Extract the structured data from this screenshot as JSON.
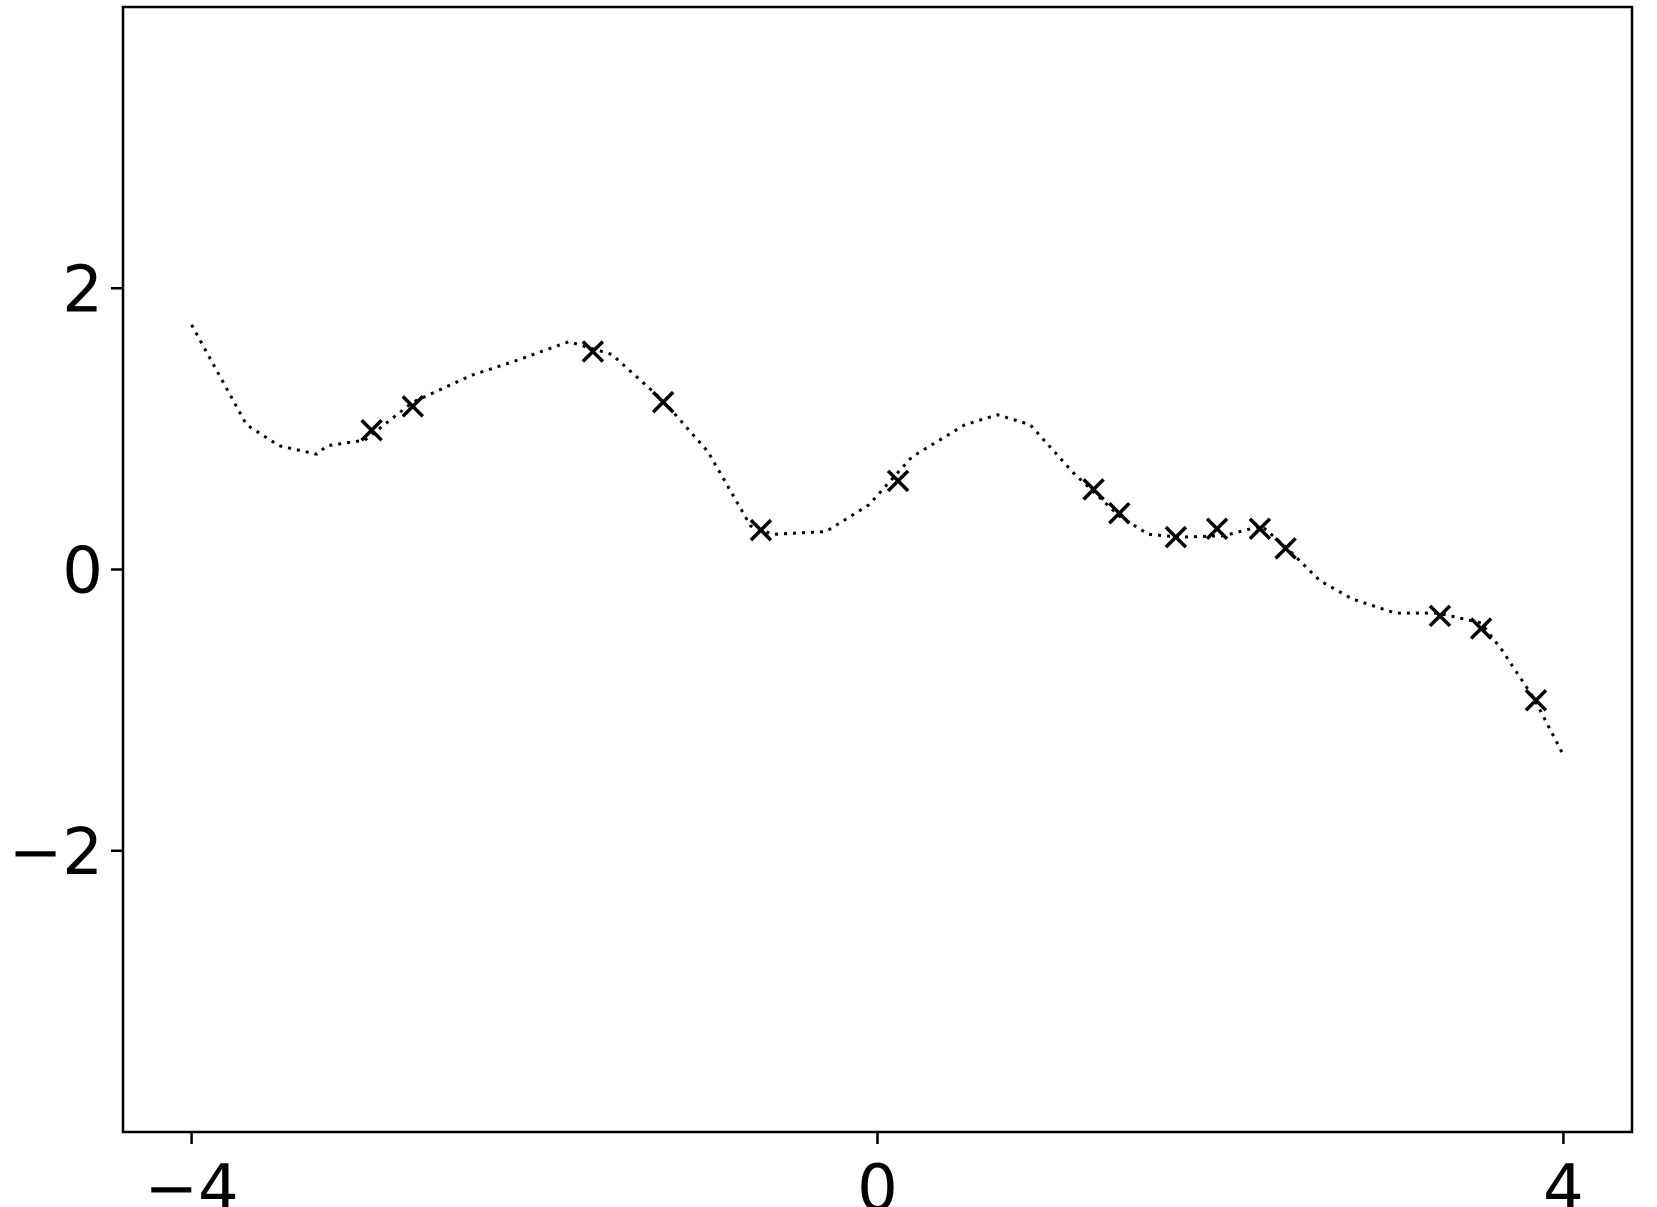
{
  "chart_data": {
    "type": "line",
    "xlim": [
      -4.4,
      4.4
    ],
    "ylim": [
      -4,
      4
    ],
    "xticks": [
      {
        "value": -4,
        "label": "−4"
      },
      0,
      4
    ],
    "yticks": [
      {
        "value": -2,
        "label": "−2"
      },
      0,
      2
    ],
    "series": [
      {
        "style": "dotted",
        "color": "#000000",
        "x": [
          -4,
          -3.68,
          -3.49,
          -3.27,
          -3.21,
          -2.99,
          -2.71,
          -2.37,
          -2.12,
          -1.8,
          -1.55,
          -1.25,
          -0.99,
          -0.74,
          -0.61,
          -0.3,
          -0.05,
          0.2,
          0.51,
          0.7,
          0.89,
          1.14,
          1.41,
          1.58,
          1.77,
          2.02,
          2.24,
          2.39,
          2.58,
          2.77,
          3.02,
          3.27,
          3.52,
          3.64,
          3.83,
          4
        ],
        "values": [
          1.74,
          1.03,
          0.88,
          0.82,
          0.88,
          0.92,
          1.19,
          1.38,
          1.48,
          1.62,
          1.53,
          1.2,
          0.84,
          0.31,
          0.25,
          0.27,
          0.46,
          0.8,
          1.03,
          1.1,
          1.03,
          0.69,
          0.38,
          0.25,
          0.23,
          0.24,
          0.31,
          0.15,
          -0.08,
          -0.21,
          -0.31,
          -0.31,
          -0.38,
          -0.57,
          -0.92,
          -1.32
        ]
      },
      {
        "marker": "x",
        "color": "#000000",
        "x": [
          -2.95,
          -2.71,
          -1.66,
          -1.25,
          -0.68,
          0.12,
          1.26,
          1.41,
          1.74,
          1.98,
          2.23,
          2.38,
          3.28,
          3.52,
          3.84
        ],
        "values": [
          0.99,
          1.16,
          1.55,
          1.19,
          0.28,
          0.63,
          0.57,
          0.4,
          0.23,
          0.29,
          0.29,
          0.15,
          -0.33,
          -0.42,
          -0.93
        ]
      }
    ]
  }
}
